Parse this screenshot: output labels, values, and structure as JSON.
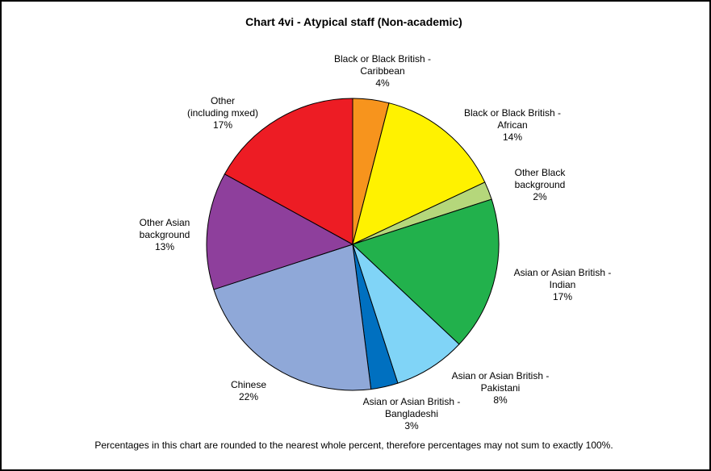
{
  "chart_data": {
    "type": "pie",
    "title": "Chart 4vi - Atypical staff (Non-academic)",
    "footnote": "Percentages in this chart are rounded to the nearest whole percent, therefore percentages may not sum to exactly 100%.",
    "slices": [
      {
        "lines": [
          "Black or Black British -",
          "Caribbean"
        ],
        "value": 4,
        "label": "4%",
        "color": "#F7941D"
      },
      {
        "lines": [
          "Black or Black British -",
          "African"
        ],
        "value": 14,
        "label": "14%",
        "color": "#FFF200"
      },
      {
        "lines": [
          "Other Black",
          "background"
        ],
        "value": 2,
        "label": "2%",
        "color": "#B5D77B"
      },
      {
        "lines": [
          "Asian or Asian British -",
          "Indian"
        ],
        "value": 17,
        "label": "17%",
        "color": "#22B14C"
      },
      {
        "lines": [
          "Asian or Asian British -",
          "Pakistani"
        ],
        "value": 8,
        "label": "8%",
        "color": "#80D4F7"
      },
      {
        "lines": [
          "Asian or Asian British -",
          "Bangladeshi"
        ],
        "value": 3,
        "label": "3%",
        "color": "#0070C0"
      },
      {
        "lines": [
          "Chinese"
        ],
        "value": 22,
        "label": "22%",
        "color": "#8FA8D8"
      },
      {
        "lines": [
          "Other Asian",
          "background"
        ],
        "value": 13,
        "label": "13%",
        "color": "#8E3F9C"
      },
      {
        "lines": [
          "Other",
          "(including mxed)"
        ],
        "value": 17,
        "label": "17%",
        "color": "#ED1C24"
      }
    ]
  }
}
